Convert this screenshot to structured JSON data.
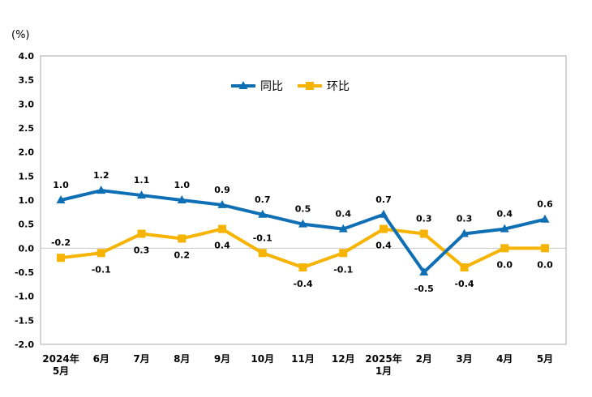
{
  "chart_data": {
    "type": "line",
    "unit_label": "(%)",
    "categories": [
      [
        "2024年",
        "5月"
      ],
      [
        "6月"
      ],
      [
        "7月"
      ],
      [
        "8月"
      ],
      [
        "9月"
      ],
      [
        "10月"
      ],
      [
        "11月"
      ],
      [
        "12月"
      ],
      [
        "2025年",
        "1月"
      ],
      [
        "2月"
      ],
      [
        "3月"
      ],
      [
        "4月"
      ],
      [
        "5月"
      ]
    ],
    "y_ticks": [
      "4.0",
      "3.5",
      "3.0",
      "2.5",
      "2.0",
      "1.5",
      "1.0",
      "0.5",
      "0.0",
      "-0.5",
      "-1.0",
      "-1.5",
      "-2.0"
    ],
    "ylim": [
      -2.0,
      4.0
    ],
    "grid": false,
    "legend_position": "top-center",
    "series": [
      {
        "name": "同比",
        "color": "#0f6fb5",
        "marker": "triangle",
        "values": [
          1.0,
          1.2,
          1.1,
          1.0,
          0.9,
          0.7,
          0.5,
          0.4,
          0.7,
          -0.5,
          0.3,
          0.4,
          0.6
        ],
        "labels": [
          "1.0",
          "1.2",
          "1.1",
          "1.0",
          "0.9",
          "0.7",
          "0.5",
          "0.4",
          "0.7",
          "-0.5",
          "0.3",
          "0.4",
          "0.6"
        ],
        "label_side": [
          "above",
          "above",
          "above",
          "above",
          "above",
          "above",
          "above",
          "above",
          "above",
          "below",
          "above",
          "above",
          "above"
        ]
      },
      {
        "name": "环比",
        "color": "#f6b400",
        "marker": "square",
        "values": [
          -0.2,
          -0.1,
          0.3,
          0.2,
          0.4,
          -0.1,
          -0.4,
          -0.1,
          0.4,
          0.3,
          -0.4,
          0.0,
          0.0
        ],
        "labels": [
          "-0.2",
          "-0.1",
          "0.3",
          "0.2",
          "0.4",
          "-0.1",
          "-0.4",
          "-0.1",
          "0.4",
          "0.3",
          "-0.4",
          "0.0",
          "0.0"
        ],
        "label_side": [
          "above",
          "below",
          "below",
          "below",
          "below",
          "above",
          "below",
          "below",
          "below",
          "above",
          "below",
          "below",
          "below"
        ]
      }
    ]
  }
}
